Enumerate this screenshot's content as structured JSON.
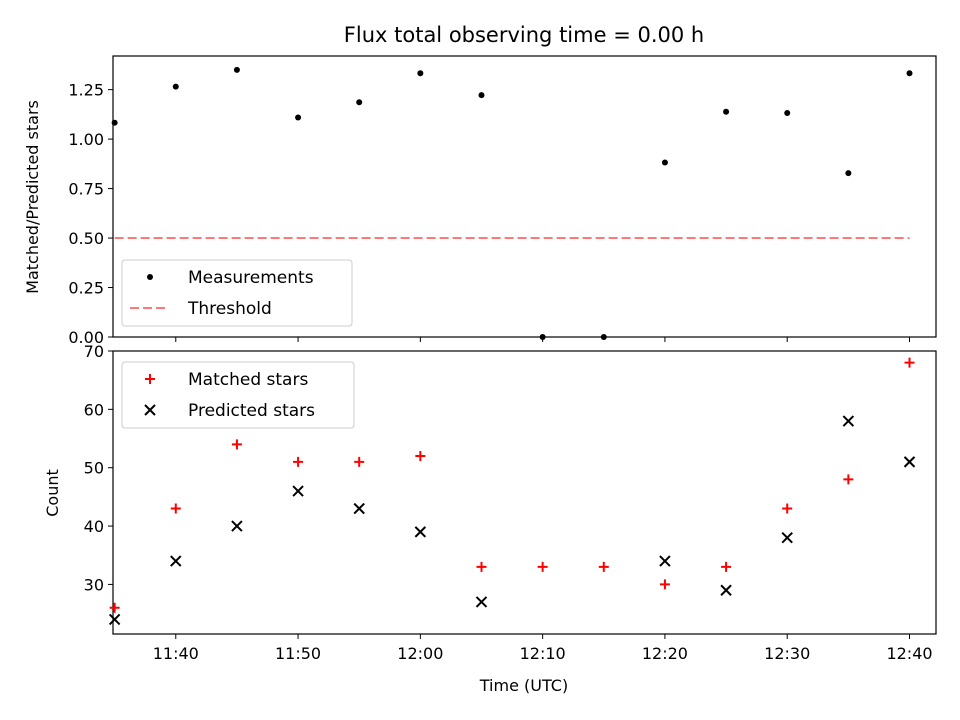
{
  "chart_data": [
    {
      "type": "scatter",
      "title": "Flux total observing time = 0.00 h",
      "xlabel": "",
      "ylabel": "Matched/Predicted stars",
      "ylim": [
        0,
        1.42
      ],
      "yticks": [
        "0.00",
        "0.25",
        "0.50",
        "0.75",
        "1.00",
        "1.25"
      ],
      "legend_position": "lower-left",
      "series": [
        {
          "name": "Measurements",
          "marker": "dot",
          "color": "#000000",
          "x": [
            "11:35",
            "11:40",
            "11:45",
            "11:50",
            "11:55",
            "12:00",
            "12:05",
            "12:10",
            "12:15",
            "12:20",
            "12:25",
            "12:30",
            "12:35",
            "12:40"
          ],
          "y": [
            1.083,
            1.265,
            1.35,
            1.109,
            1.186,
            1.333,
            1.222,
            0.0,
            0.0,
            0.882,
            1.138,
            1.132,
            0.828,
            1.333
          ]
        },
        {
          "name": "Threshold",
          "marker": "dashed-line",
          "color": "#ff7777",
          "x": [
            "11:35",
            "12:40"
          ],
          "y": [
            0.5,
            0.5
          ]
        }
      ]
    },
    {
      "type": "scatter",
      "title": "",
      "xlabel": "Time (UTC)",
      "ylabel": "Count",
      "ylim": [
        21.5,
        70
      ],
      "yticks": [
        "30",
        "40",
        "50",
        "60",
        "70"
      ],
      "xticks": [
        "11:40",
        "11:50",
        "12:00",
        "12:10",
        "12:20",
        "12:30",
        "12:40"
      ],
      "legend_position": "top-left",
      "series": [
        {
          "name": "Matched stars",
          "marker": "plus",
          "color": "#ff0000",
          "x": [
            "11:35",
            "11:40",
            "11:45",
            "11:50",
            "11:55",
            "12:00",
            "12:05",
            "12:10",
            "12:15",
            "12:20",
            "12:25",
            "12:30",
            "12:35",
            "12:40"
          ],
          "y": [
            26,
            43,
            54,
            51,
            51,
            52,
            33,
            33,
            33,
            30,
            33,
            43,
            48,
            68
          ]
        },
        {
          "name": "Predicted stars",
          "marker": "x",
          "color": "#000000",
          "x": [
            "11:35",
            "11:40",
            "11:45",
            "11:50",
            "11:55",
            "12:00",
            "12:05",
            "12:10",
            "12:15",
            "12:20",
            "12:25",
            "12:30",
            "12:35",
            "12:40"
          ],
          "y": [
            24,
            34,
            40,
            46,
            43,
            39,
            27,
            null,
            null,
            34,
            29,
            38,
            58,
            51
          ]
        }
      ]
    }
  ]
}
